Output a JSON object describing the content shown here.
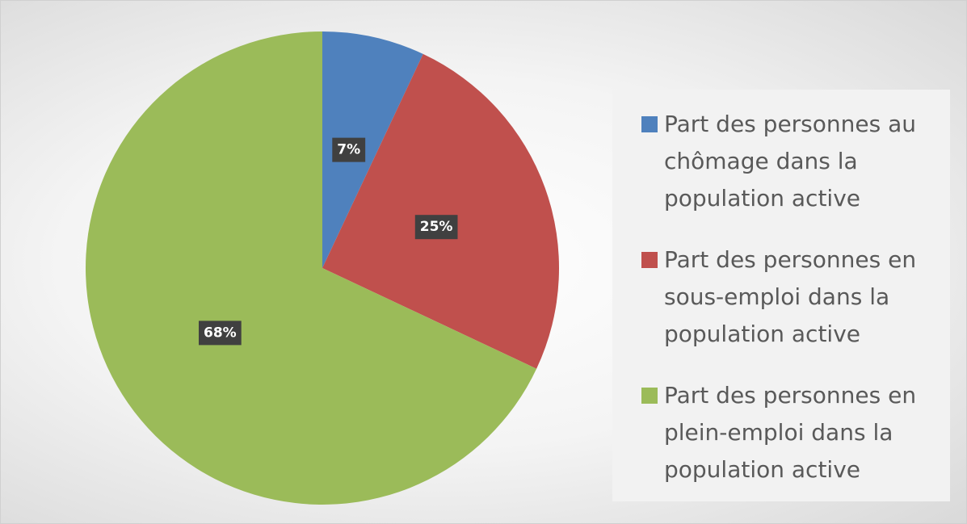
{
  "chart_data": {
    "type": "pie",
    "categories": [
      "Part des personnes au chômage dans la population active",
      "Part des personnes en sous-emploi dans la population active",
      "Part des personnes en plein-emploi dans la population active"
    ],
    "values": [
      7,
      25,
      68
    ],
    "value_labels": [
      "7%",
      "25%",
      "68%"
    ],
    "colors": [
      "#4f81bd",
      "#c0504d",
      "#9bbb59"
    ],
    "legend": "right"
  }
}
